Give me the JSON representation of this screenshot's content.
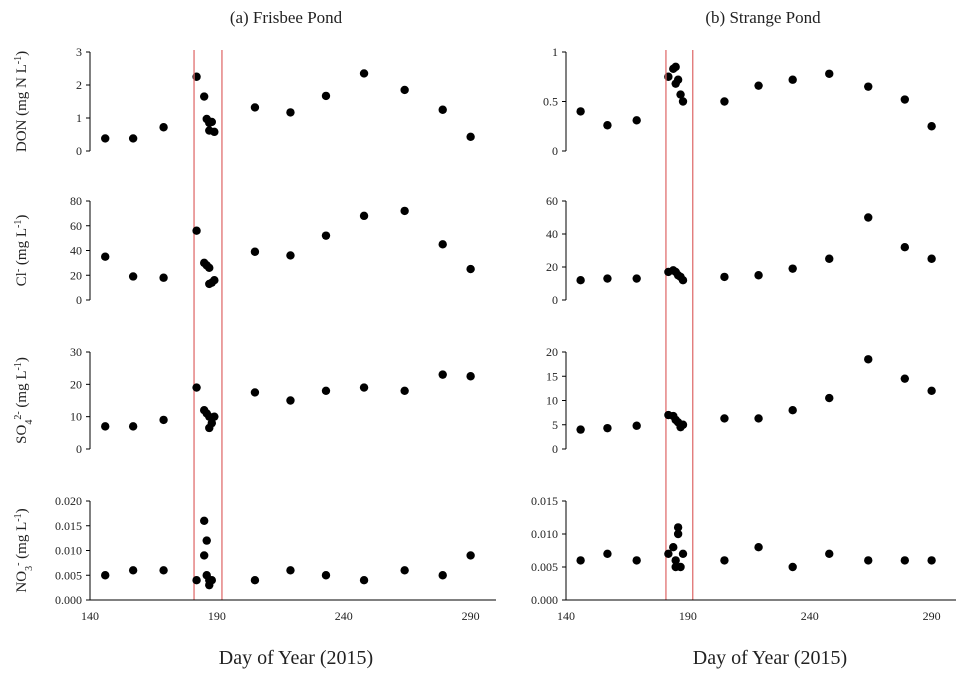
{
  "figure": {
    "xlabel": "Day of Year (2015)",
    "xlim": [
      140,
      300
    ],
    "xticks": [
      140,
      190,
      240,
      290
    ],
    "highlight_window": [
      181,
      192
    ],
    "colors": {
      "points": "#000000",
      "window_lines": "#e07070",
      "axes": "#000000"
    }
  },
  "chart_data": [
    {
      "type": "scatter",
      "panel": "(a) Frisbee Pond",
      "column": "left",
      "variable": "DON",
      "ylabel": "DON (mg N L-1)",
      "ylim": [
        0,
        3
      ],
      "yticks": [
        0,
        1,
        2,
        3
      ],
      "ytick_labels": [
        "0",
        "1",
        "2",
        "3"
      ],
      "points": [
        [
          146,
          0.38
        ],
        [
          157,
          0.38
        ],
        [
          169,
          0.72
        ],
        [
          182,
          2.25
        ],
        [
          185,
          1.65
        ],
        [
          186,
          0.97
        ],
        [
          187,
          0.85
        ],
        [
          187,
          0.62
        ],
        [
          188,
          0.88
        ],
        [
          189,
          0.58
        ],
        [
          205,
          1.32
        ],
        [
          219,
          1.17
        ],
        [
          233,
          1.67
        ],
        [
          248,
          2.35
        ],
        [
          264,
          1.85
        ],
        [
          279,
          1.25
        ],
        [
          290,
          0.43
        ]
      ]
    },
    {
      "type": "scatter",
      "panel": "(a) Frisbee Pond",
      "column": "left",
      "variable": "Cl",
      "ylabel": "Cl- (mg L-1)",
      "ylim": [
        0,
        80
      ],
      "yticks": [
        0,
        20,
        40,
        60,
        80
      ],
      "ytick_labels": [
        "0",
        "20",
        "40",
        "60",
        "80"
      ],
      "points": [
        [
          146,
          35
        ],
        [
          157,
          19
        ],
        [
          169,
          18
        ],
        [
          182,
          56
        ],
        [
          185,
          30
        ],
        [
          186,
          28
        ],
        [
          187,
          26
        ],
        [
          187,
          13
        ],
        [
          188,
          14
        ],
        [
          189,
          16
        ],
        [
          205,
          39
        ],
        [
          219,
          36
        ],
        [
          233,
          52
        ],
        [
          248,
          68
        ],
        [
          264,
          72
        ],
        [
          279,
          45
        ],
        [
          290,
          25
        ]
      ]
    },
    {
      "type": "scatter",
      "panel": "(a) Frisbee Pond",
      "column": "left",
      "variable": "SO4",
      "ylabel": "SO42- (mg L-1)",
      "ylim": [
        0,
        30
      ],
      "yticks": [
        0,
        10,
        20,
        30
      ],
      "ytick_labels": [
        "0",
        "10",
        "20",
        "30"
      ],
      "points": [
        [
          146,
          7
        ],
        [
          157,
          7
        ],
        [
          169,
          9
        ],
        [
          182,
          19
        ],
        [
          185,
          12
        ],
        [
          186,
          11
        ],
        [
          187,
          10
        ],
        [
          187,
          6.5
        ],
        [
          188,
          8
        ],
        [
          189,
          10
        ],
        [
          205,
          17.5
        ],
        [
          219,
          15
        ],
        [
          233,
          18
        ],
        [
          248,
          19
        ],
        [
          264,
          18
        ],
        [
          279,
          23
        ],
        [
          290,
          22.5
        ]
      ]
    },
    {
      "type": "scatter",
      "panel": "(a) Frisbee Pond",
      "column": "left",
      "variable": "NO3",
      "ylabel": "NO3- (mg L-1)",
      "ylim": [
        0,
        0.02
      ],
      "yticks": [
        0,
        0.005,
        0.01,
        0.015,
        0.02
      ],
      "ytick_labels": [
        "0.000",
        "0.005",
        "0.010",
        "0.015",
        "0.020"
      ],
      "points": [
        [
          146,
          0.005
        ],
        [
          157,
          0.006
        ],
        [
          169,
          0.006
        ],
        [
          182,
          0.004
        ],
        [
          185,
          0.016
        ],
        [
          185,
          0.009
        ],
        [
          186,
          0.012
        ],
        [
          186,
          0.005
        ],
        [
          187,
          0.004
        ],
        [
          187,
          0.003
        ],
        [
          188,
          0.004
        ],
        [
          205,
          0.004
        ],
        [
          219,
          0.006
        ],
        [
          233,
          0.005
        ],
        [
          248,
          0.004
        ],
        [
          264,
          0.006
        ],
        [
          279,
          0.005
        ],
        [
          290,
          0.009
        ]
      ]
    },
    {
      "type": "scatter",
      "panel": "(b) Strange Pond",
      "column": "right",
      "variable": "DON",
      "ylabel": "",
      "ylim": [
        0,
        1
      ],
      "yticks": [
        0,
        0.5,
        1
      ],
      "ytick_labels": [
        "0",
        "0.5",
        "1"
      ],
      "points": [
        [
          146,
          0.4
        ],
        [
          157,
          0.26
        ],
        [
          169,
          0.31
        ],
        [
          182,
          0.75
        ],
        [
          184,
          0.83
        ],
        [
          185,
          0.85
        ],
        [
          185,
          0.68
        ],
        [
          186,
          0.72
        ],
        [
          187,
          0.57
        ],
        [
          188,
          0.5
        ],
        [
          205,
          0.5
        ],
        [
          219,
          0.66
        ],
        [
          233,
          0.72
        ],
        [
          248,
          0.78
        ],
        [
          264,
          0.65
        ],
        [
          279,
          0.52
        ],
        [
          290,
          0.25
        ]
      ]
    },
    {
      "type": "scatter",
      "panel": "(b) Strange Pond",
      "column": "right",
      "variable": "Cl",
      "ylabel": "",
      "ylim": [
        0,
        60
      ],
      "yticks": [
        0,
        20,
        40,
        60
      ],
      "ytick_labels": [
        "0",
        "20",
        "40",
        "60"
      ],
      "points": [
        [
          146,
          12
        ],
        [
          157,
          13
        ],
        [
          169,
          13
        ],
        [
          182,
          17
        ],
        [
          184,
          18
        ],
        [
          185,
          17
        ],
        [
          186,
          15
        ],
        [
          187,
          14
        ],
        [
          188,
          12
        ],
        [
          205,
          14
        ],
        [
          219,
          15
        ],
        [
          233,
          19
        ],
        [
          248,
          25
        ],
        [
          264,
          50
        ],
        [
          279,
          32
        ],
        [
          290,
          25
        ]
      ]
    },
    {
      "type": "scatter",
      "panel": "(b) Strange Pond",
      "column": "right",
      "variable": "SO4",
      "ylabel": "",
      "ylim": [
        0,
        20
      ],
      "yticks": [
        0,
        5,
        10,
        15,
        20
      ],
      "ytick_labels": [
        "0",
        "5",
        "10",
        "15",
        "20"
      ],
      "points": [
        [
          146,
          4
        ],
        [
          157,
          4.3
        ],
        [
          169,
          4.8
        ],
        [
          182,
          7
        ],
        [
          184,
          6.8
        ],
        [
          185,
          6
        ],
        [
          186,
          5.5
        ],
        [
          187,
          4.5
        ],
        [
          188,
          5
        ],
        [
          205,
          6.3
        ],
        [
          219,
          6.3
        ],
        [
          233,
          8
        ],
        [
          248,
          10.5
        ],
        [
          264,
          18.5
        ],
        [
          279,
          14.5
        ],
        [
          290,
          12
        ]
      ]
    },
    {
      "type": "scatter",
      "panel": "(b) Strange Pond",
      "column": "right",
      "variable": "NO3",
      "ylabel": "",
      "ylim": [
        0,
        0.015
      ],
      "yticks": [
        0,
        0.005,
        0.01,
        0.015
      ],
      "ytick_labels": [
        "0.000",
        "0.005",
        "0.010",
        "0.015"
      ],
      "points": [
        [
          146,
          0.006
        ],
        [
          157,
          0.007
        ],
        [
          169,
          0.006
        ],
        [
          182,
          0.007
        ],
        [
          184,
          0.008
        ],
        [
          185,
          0.006
        ],
        [
          185,
          0.005
        ],
        [
          186,
          0.011
        ],
        [
          186,
          0.01
        ],
        [
          187,
          0.005
        ],
        [
          188,
          0.007
        ],
        [
          205,
          0.006
        ],
        [
          219,
          0.008
        ],
        [
          233,
          0.005
        ],
        [
          248,
          0.007
        ],
        [
          264,
          0.006
        ],
        [
          279,
          0.006
        ],
        [
          290,
          0.006
        ]
      ]
    }
  ]
}
